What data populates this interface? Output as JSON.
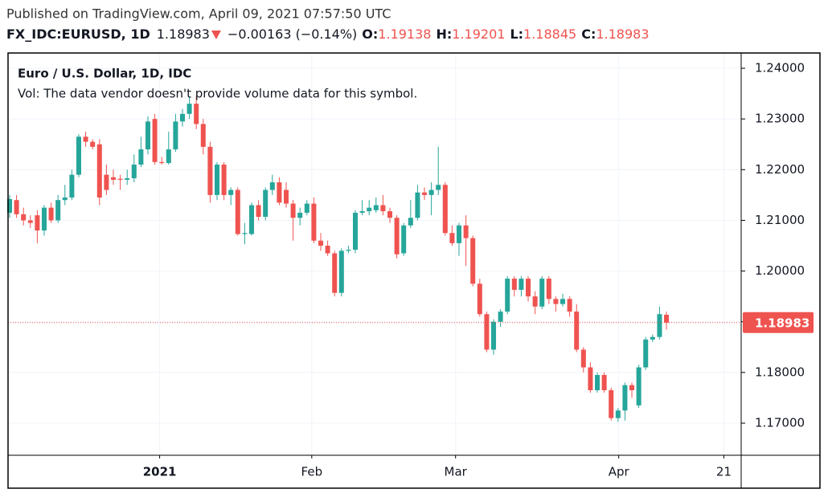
{
  "chart_data": {
    "type": "candlestick",
    "published": "Published on TradingView.com, April 09, 2021 07:57:50 UTC",
    "symbol": "FX_IDC:EURUSD, 1D",
    "price": "1.18983",
    "change": "−0.00163 (−0.14%)",
    "ohlc_header": [
      {
        "key": "O:",
        "value": "1.19138"
      },
      {
        "key": "H:",
        "value": "1.19201"
      },
      {
        "key": "L:",
        "value": "1.18845"
      },
      {
        "key": "C:",
        "value": "1.18983"
      }
    ],
    "title": "Euro / U.S. Dollar, 1D, IDC",
    "subtitle": "Vol: The data vendor doesn't provide volume data for this symbol.",
    "up_color": "#26a69a",
    "down_color": "#ef5350",
    "open": [
      1.2115,
      1.214,
      1.2112,
      1.21,
      1.211,
      1.208,
      1.2125,
      1.21,
      1.214,
      1.2145,
      1.219,
      1.2265,
      1.2255,
      1.225,
      1.219,
      1.2185,
      1.2182,
      1.218,
      1.2183,
      1.221,
      1.224,
      1.23,
      1.2215,
      1.2213,
      1.224,
      1.2295,
      1.231,
      1.233,
      1.229,
      1.2245,
      1.215,
      1.221,
      1.215,
      1.216,
      1.2073,
      1.2073,
      1.213,
      1.2107,
      1.216,
      1.2175,
      1.216,
      1.2133,
      1.2105,
      1.2115,
      1.2133,
      1.206,
      1.205,
      1.2035,
      1.1957,
      1.204,
      1.2042,
      1.2115,
      1.2118,
      1.212,
      1.213,
      1.2118,
      1.2105,
      1.2035,
      1.209,
      1.2105,
      1.2155,
      1.215,
      1.216,
      1.217,
      1.2075,
      1.2055,
      1.209,
      1.2065,
      1.1975,
      1.1915,
      1.1845,
      1.19,
      1.192,
      1.1985,
      1.1963,
      1.1985,
      1.195,
      1.193,
      1.1985,
      1.1945,
      1.1935,
      1.1945,
      1.192,
      1.1845,
      1.181,
      1.1765,
      1.1795,
      1.1765,
      1.171,
      1.1725,
      1.1775,
      1.1735,
      1.181,
      1.1865,
      1.187,
      1.19138
    ],
    "high": [
      1.215,
      1.215,
      1.2125,
      1.211,
      1.212,
      1.213,
      1.2135,
      1.215,
      1.217,
      1.22,
      1.227,
      1.2275,
      1.226,
      1.226,
      1.221,
      1.22,
      1.219,
      1.22,
      1.223,
      1.2265,
      1.2305,
      1.231,
      1.2225,
      1.2275,
      1.231,
      1.232,
      1.2345,
      1.2345,
      1.23,
      1.2255,
      1.2215,
      1.2215,
      1.2165,
      1.2165,
      1.2095,
      1.2135,
      1.214,
      1.2165,
      1.219,
      1.2185,
      1.2175,
      1.214,
      1.2125,
      1.214,
      1.2145,
      1.2075,
      1.206,
      1.204,
      1.2045,
      1.205,
      1.212,
      1.214,
      1.214,
      1.2145,
      1.215,
      1.2125,
      1.211,
      1.2095,
      1.214,
      1.217,
      1.2165,
      1.2175,
      1.2245,
      1.2175,
      1.209,
      1.2095,
      1.211,
      1.207,
      1.1985,
      1.192,
      1.1905,
      1.1925,
      1.199,
      1.199,
      1.199,
      1.199,
      1.196,
      1.199,
      1.199,
      1.195,
      1.1955,
      1.195,
      1.1935,
      1.185,
      1.182,
      1.18,
      1.18,
      1.177,
      1.173,
      1.178,
      1.178,
      1.1815,
      1.187,
      1.1875,
      1.193,
      1.19201
    ],
    "low": [
      1.2105,
      1.2105,
      1.209,
      1.2085,
      1.2055,
      1.207,
      1.2095,
      1.2095,
      1.213,
      1.214,
      1.2185,
      1.2245,
      1.224,
      1.213,
      1.215,
      1.217,
      1.216,
      1.217,
      1.2175,
      1.2205,
      1.223,
      1.221,
      1.221,
      1.221,
      1.2235,
      1.2285,
      1.23,
      1.228,
      1.223,
      1.2135,
      1.214,
      1.214,
      1.213,
      1.207,
      1.2053,
      1.207,
      1.21,
      1.21,
      1.215,
      1.213,
      1.2125,
      1.206,
      1.209,
      1.211,
      1.2055,
      1.204,
      1.203,
      1.195,
      1.195,
      1.2035,
      1.2035,
      1.211,
      1.211,
      1.2115,
      1.211,
      1.2095,
      1.2025,
      1.203,
      1.2085,
      1.21,
      1.214,
      1.211,
      1.215,
      1.207,
      1.205,
      1.203,
      1.201,
      1.197,
      1.191,
      1.184,
      1.1835,
      1.189,
      1.1915,
      1.195,
      1.195,
      1.194,
      1.1915,
      1.1925,
      1.1935,
      1.192,
      1.193,
      1.191,
      1.184,
      1.18,
      1.176,
      1.176,
      1.176,
      1.1705,
      1.1703,
      1.1705,
      1.175,
      1.173,
      1.1805,
      1.186,
      1.1865,
      1.18845
    ],
    "close": [
      1.2142,
      1.2112,
      1.21,
      1.2095,
      1.208,
      1.2125,
      1.21,
      1.214,
      1.2145,
      1.219,
      1.2265,
      1.2255,
      1.2245,
      1.2145,
      1.216,
      1.218,
      1.218,
      1.2183,
      1.221,
      1.224,
      1.2295,
      1.2215,
      1.2213,
      1.224,
      1.2295,
      1.231,
      1.233,
      1.229,
      1.2245,
      1.215,
      1.221,
      1.215,
      1.216,
      1.2073,
      1.2075,
      1.213,
      1.2107,
      1.216,
      1.2175,
      1.2135,
      1.2133,
      1.2105,
      1.2115,
      1.2133,
      1.206,
      1.205,
      1.2035,
      1.1957,
      1.204,
      1.2042,
      1.2115,
      1.2118,
      1.2125,
      1.213,
      1.2118,
      1.2105,
      1.2033,
      1.209,
      1.2105,
      1.2155,
      1.215,
      1.216,
      1.217,
      1.2075,
      1.2055,
      1.209,
      1.2065,
      1.1975,
      1.1915,
      1.1845,
      1.19,
      1.192,
      1.1985,
      1.1963,
      1.1985,
      1.195,
      1.193,
      1.1985,
      1.1945,
      1.1935,
      1.1945,
      1.192,
      1.1845,
      1.181,
      1.1765,
      1.1795,
      1.1765,
      1.171,
      1.1725,
      1.1775,
      1.1765,
      1.181,
      1.1865,
      1.187,
      1.1915,
      1.18983
    ],
    "xlim": [
      -0.23,
      105.81
    ],
    "xticks": [
      {
        "value": 21.7,
        "label": "2021"
      },
      {
        "value": 43.7,
        "label": "Feb"
      },
      {
        "value": 64.5,
        "label": "Mar"
      },
      {
        "value": 88.1,
        "label": "Apr"
      },
      {
        "value": 103.3,
        "label": "21"
      }
    ],
    "ylim": [
      1.16367,
      1.24301
    ],
    "yticks": [
      {
        "value": 1.17,
        "label": "1.17000"
      },
      {
        "value": 1.18,
        "label": "1.18000"
      },
      {
        "value": 1.19,
        "label": "1.19000"
      },
      {
        "value": 1.2,
        "label": "1.20000"
      },
      {
        "value": 1.21,
        "label": "1.21000"
      },
      {
        "value": 1.22,
        "label": "1.22000"
      },
      {
        "value": 1.23,
        "label": "1.23000"
      },
      {
        "value": 1.24,
        "label": "1.24000"
      }
    ],
    "last_price": {
      "value": 1.18983,
      "label": "1.18983"
    },
    "grid": true
  }
}
